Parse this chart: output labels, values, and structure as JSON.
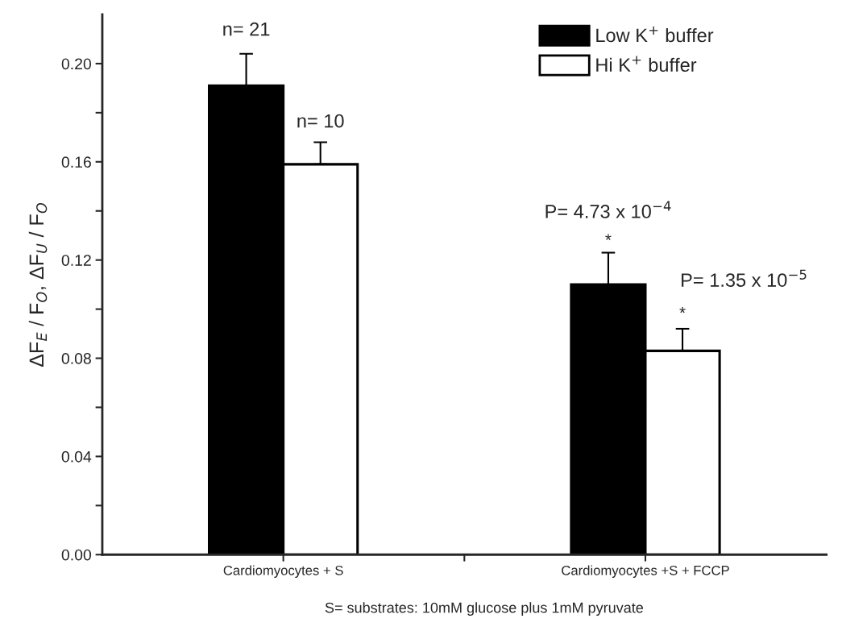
{
  "chart_data": {
    "type": "bar",
    "ylabel": "ΔF$_{E}$ / F$_{O}$, ΔF$_{U}$ / F$_{O}$",
    "categories": [
      "Cardiomyocytes + S",
      "Cardiomyocytes +S + FCCP"
    ],
    "series": [
      {
        "name": "Low K$^{+}$ buffer",
        "color": "#000000",
        "values": [
          0.191,
          0.11
        ],
        "errors": [
          [
            0.191,
            0.204
          ],
          [
            0.11,
            0.123
          ]
        ]
      },
      {
        "name": "Hi K$^{+}$ buffer",
        "color": "#ffffff",
        "values": [
          0.159,
          0.083
        ],
        "errors": [
          [
            0.159,
            0.168
          ],
          [
            0.083,
            0.092
          ]
        ]
      }
    ],
    "ylim": [
      0,
      0.22
    ],
    "yticks": [
      {
        "value": 0,
        "label": "0.00"
      },
      {
        "value": 0.02,
        "label": null
      },
      {
        "value": 0.04,
        "label": "0.04"
      },
      {
        "value": 0.06,
        "label": null
      },
      {
        "value": 0.08,
        "label": "0.08"
      },
      {
        "value": 0.1,
        "label": null
      },
      {
        "value": 0.12,
        "label": "0.12"
      },
      {
        "value": 0.14,
        "label": null
      },
      {
        "value": 0.16,
        "label": "0.16"
      },
      {
        "value": 0.18,
        "label": null
      },
      {
        "value": 0.2,
        "label": "0.20"
      }
    ],
    "legend": "top right",
    "grid": false,
    "annotations": [
      "n= 21",
      "n= 10",
      "*",
      "P= 4.73 x 10$^{−4}$",
      "*",
      "P= 1.35 x 10$^{−5}$",
      "S= substrates: 10mM glucose plus 1mM pyruvate"
    ]
  }
}
